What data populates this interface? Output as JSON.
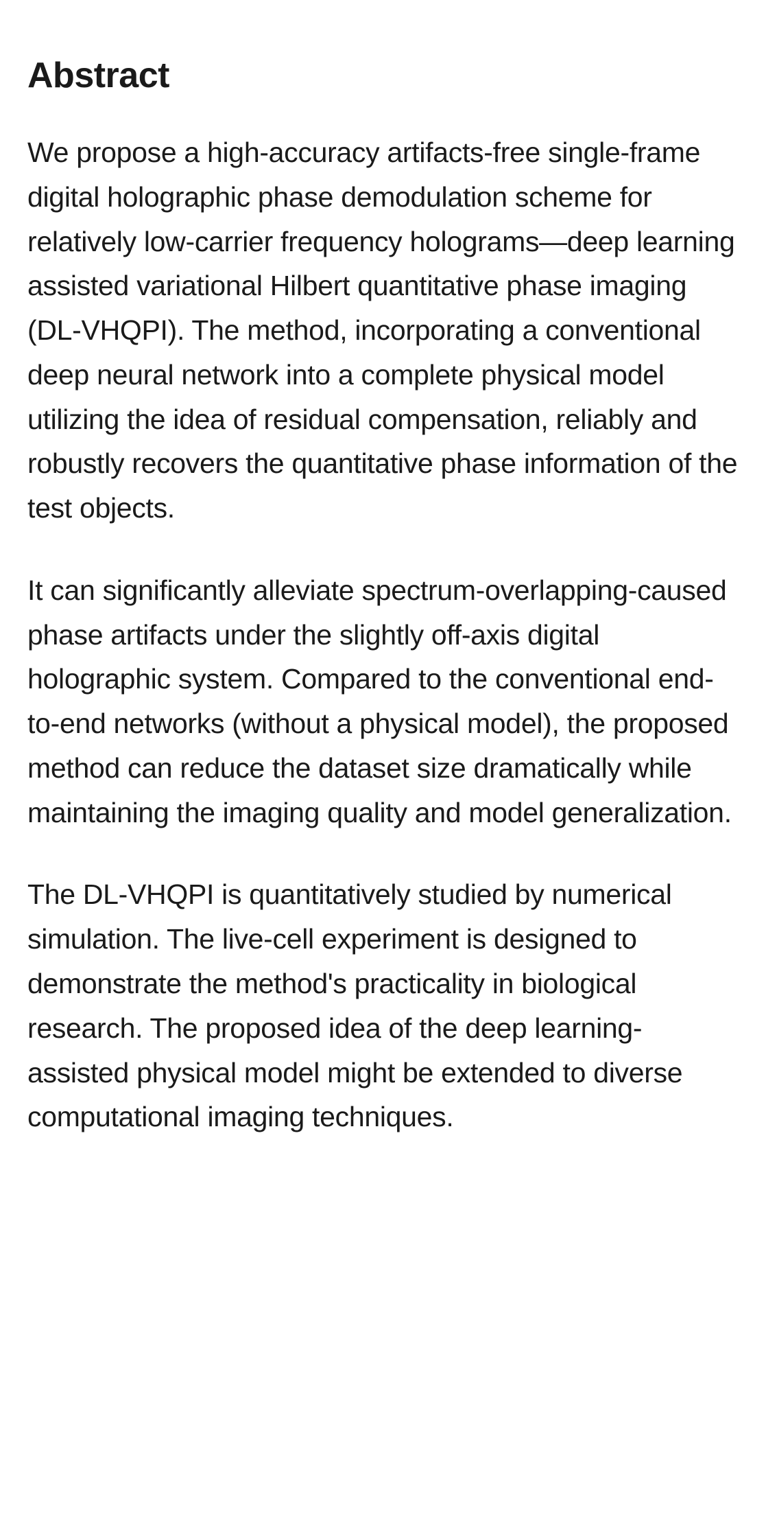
{
  "document": {
    "heading": "Abstract",
    "paragraphs": [
      "We propose a high-accuracy artifacts-free single-frame digital holographic phase demodulation scheme for relatively low-carrier frequency holograms—deep learning assisted variational Hilbert quantitative phase imaging (DL-VHQPI). The method, incorporating a conventional deep neural network into a complete physical model utilizing the idea of residual compensation, reliably and robustly recovers the quantitative phase information of the test objects.",
      "It can significantly alleviate spectrum-overlapping-caused phase artifacts under the slightly off-axis digital holographic system. Compared to the conventional end-to-end networks (without a physical model), the proposed method can reduce the dataset size dramatically while maintaining the imaging quality and model generalization.",
      "The DL-VHQPI is quantitatively studied by numerical simulation. The live-cell experiment is designed to demonstrate the method's practicality in biological research. The proposed idea of the deep learning-assisted physical model might be extended to diverse computational imaging techniques."
    ],
    "styles": {
      "background_color": "#ffffff",
      "text_color": "#1a1a1a",
      "heading_fontsize": 52,
      "heading_weight": 700,
      "body_fontsize": 41,
      "body_lineheight": 1.58
    }
  }
}
